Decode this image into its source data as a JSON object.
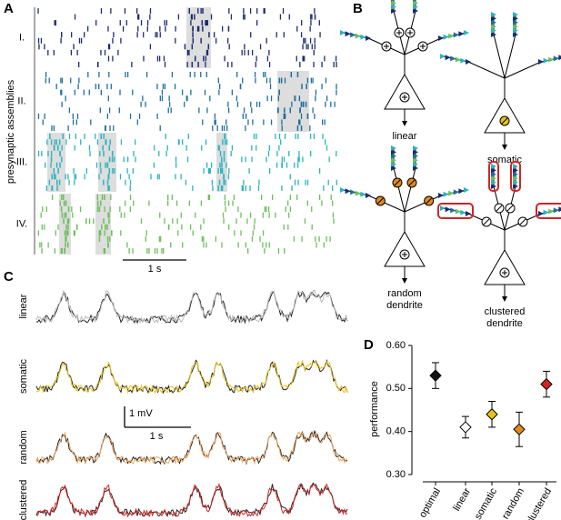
{
  "panel_labels": [
    "A",
    "B",
    "C",
    "D"
  ],
  "panel_a": {
    "ylabel": "presynaptic assemblies",
    "rows": [
      "I.",
      "II.",
      "III.",
      "IV."
    ],
    "scalebar": "1 s"
  },
  "panel_b": {
    "neurons": [
      "linear",
      "somatic",
      "random dendrite",
      "clustered dendrite"
    ]
  },
  "panel_c": {
    "traces": [
      "linear",
      "somatic",
      "random",
      "clustered"
    ],
    "scalebar_v": "1 mV",
    "scalebar_t": "1 s"
  },
  "chart_data": {
    "type": "errorbar",
    "ylabel": "performance",
    "categories": [
      "optimal",
      "linear",
      "somatic",
      "random",
      "clustered"
    ],
    "values": [
      0.53,
      0.41,
      0.44,
      0.405,
      0.51
    ],
    "errors": [
      0.03,
      0.025,
      0.03,
      0.04,
      0.03
    ],
    "colors": [
      "#111111",
      "#ffffff",
      "#e8c21a",
      "#e08a1c",
      "#d02525"
    ],
    "ylim": [
      0.3,
      0.6
    ],
    "yticks": [
      {
        "value": 0.3,
        "label": "0.30"
      },
      {
        "value": 0.4,
        "label": "0.40"
      },
      {
        "value": 0.5,
        "label": "0.50"
      },
      {
        "value": 0.6,
        "label": "0.60"
      }
    ]
  }
}
